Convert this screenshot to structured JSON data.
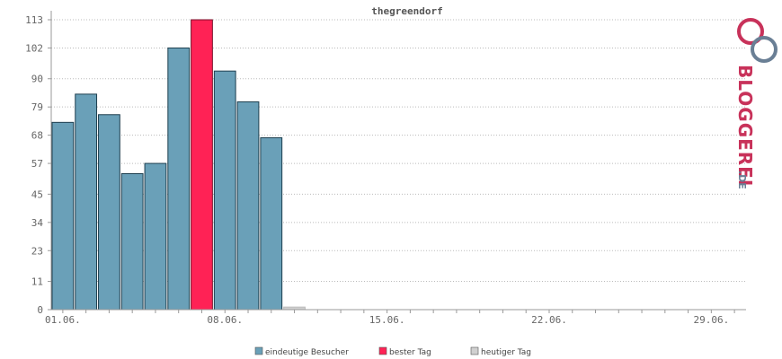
{
  "chart_data": {
    "type": "bar",
    "title": "thegreendorf",
    "xlabel": "",
    "ylabel": "",
    "ylim": [
      0,
      113
    ],
    "y_ticks": [
      "0",
      "11",
      "23",
      "34",
      "45",
      "57",
      "68",
      "79",
      "90",
      "102",
      "113"
    ],
    "x_tick_labels": [
      {
        "label": "01.06.",
        "day": 1
      },
      {
        "label": "08.06.",
        "day": 8
      },
      {
        "label": "15.06.",
        "day": 15
      },
      {
        "label": "22.06.",
        "day": 22
      },
      {
        "label": "29.06.",
        "day": 29
      }
    ],
    "days_in_range": 30,
    "grid": true,
    "bars": [
      {
        "day": 1,
        "value": 73,
        "kind": "eindeutige Besucher"
      },
      {
        "day": 2,
        "value": 84,
        "kind": "eindeutige Besucher"
      },
      {
        "day": 3,
        "value": 76,
        "kind": "eindeutige Besucher"
      },
      {
        "day": 4,
        "value": 53,
        "kind": "eindeutige Besucher"
      },
      {
        "day": 5,
        "value": 57,
        "kind": "eindeutige Besucher"
      },
      {
        "day": 6,
        "value": 102,
        "kind": "eindeutige Besucher"
      },
      {
        "day": 7,
        "value": 113,
        "kind": "bester Tag"
      },
      {
        "day": 8,
        "value": 93,
        "kind": "eindeutige Besucher"
      },
      {
        "day": 9,
        "value": 81,
        "kind": "eindeutige Besucher"
      },
      {
        "day": 10,
        "value": 67,
        "kind": "eindeutige Besucher"
      },
      {
        "day": 11,
        "value": 1,
        "kind": "heutiger Tag"
      }
    ],
    "legend": [
      {
        "name": "eindeutige Besucher",
        "color": "#6aa0b8"
      },
      {
        "name": "bester Tag",
        "color": "#ff2255"
      },
      {
        "name": "heutiger Tag",
        "color": "#d0d0d0"
      }
    ],
    "legend_position": "bottom-center"
  },
  "logo": {
    "text_main": "BLOGGEREI",
    "text_suffix": ".DE",
    "color_main": "#c8325a",
    "color_accent": "#6a7f95"
  }
}
